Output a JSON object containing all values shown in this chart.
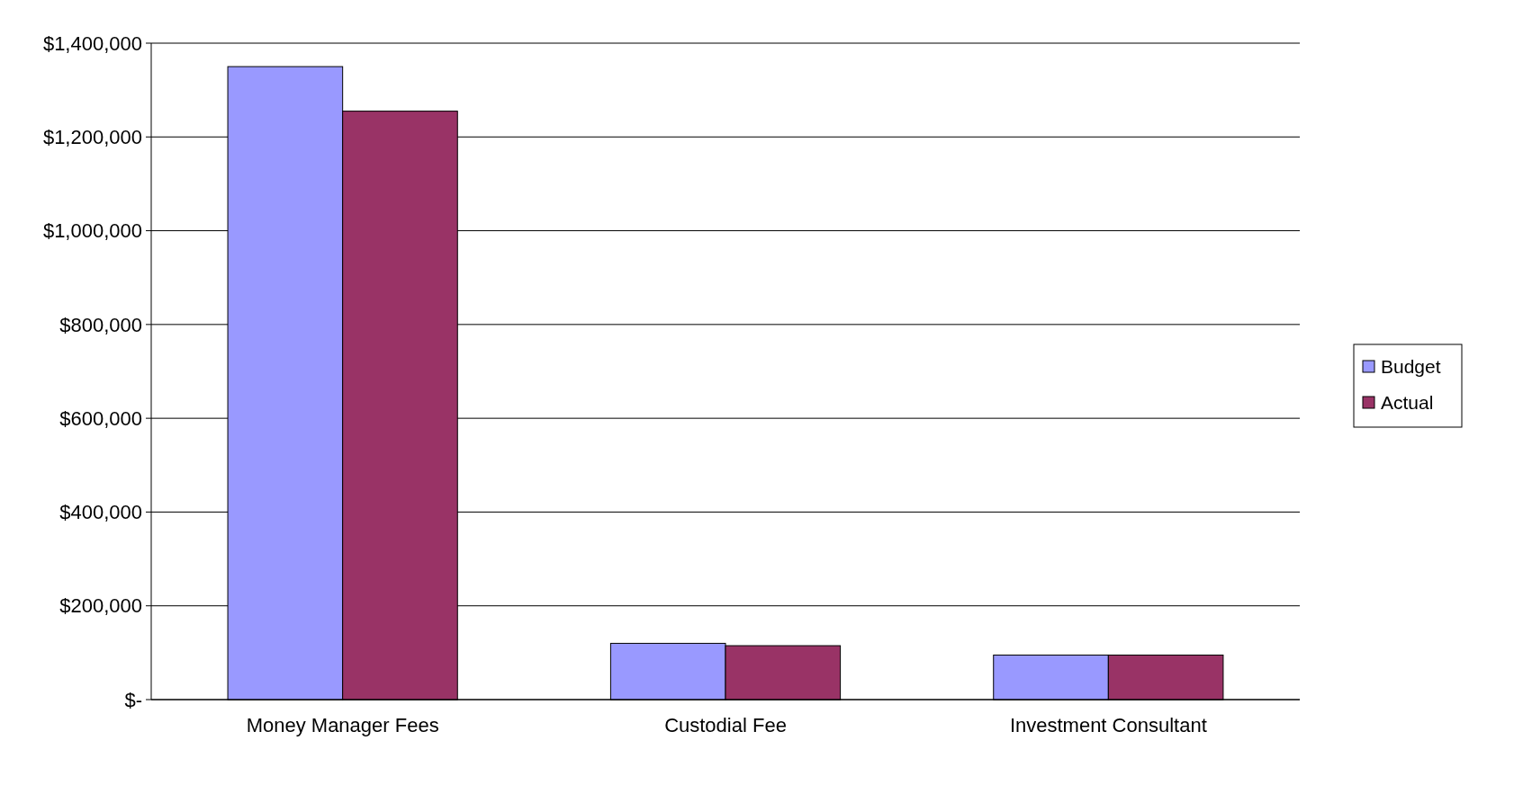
{
  "chart_data": {
    "type": "bar",
    "categories": [
      "Money Manager Fees",
      "Custodial Fee",
      "Investment Consultant"
    ],
    "series": [
      {
        "name": "Budget",
        "color": "#9999ff",
        "values": [
          1350000,
          120000,
          95000
        ]
      },
      {
        "name": "Actual",
        "color": "#993366",
        "values": [
          1255000,
          115000,
          95000
        ]
      }
    ],
    "ylim": [
      0,
      1400000
    ],
    "yticks": [
      {
        "value": 0,
        "label": "$-"
      },
      {
        "value": 200000,
        "label": "$200,000"
      },
      {
        "value": 400000,
        "label": "$400,000"
      },
      {
        "value": 600000,
        "label": "$600,000"
      },
      {
        "value": 800000,
        "label": "$800,000"
      },
      {
        "value": 1000000,
        "label": "$1,000,000"
      },
      {
        "value": 1200000,
        "label": "$1,200,000"
      },
      {
        "value": 1400000,
        "label": "$1,400,000"
      }
    ],
    "grid": "y",
    "legend": "right"
  }
}
